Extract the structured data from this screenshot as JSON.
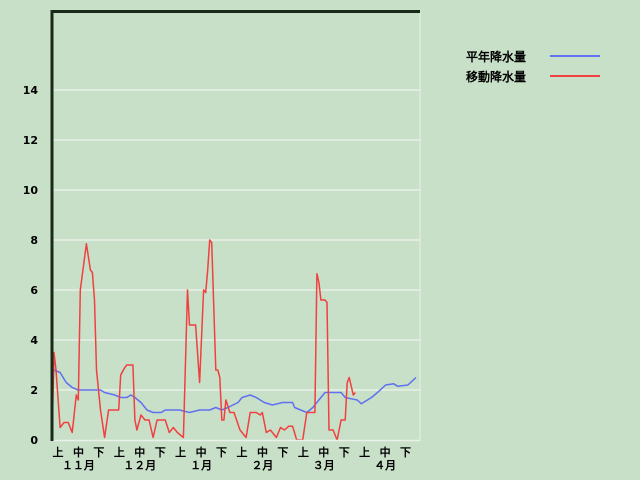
{
  "chart_data": {
    "type": "line",
    "title": "",
    "xlabel": "",
    "ylabel": "",
    "ylim": [
      0,
      14
    ],
    "yticks": [
      "0",
      "2",
      "4",
      "6",
      "8",
      "10",
      "12",
      "14"
    ],
    "grid": true,
    "legend_position": "right",
    "x_period_labels": [
      "上",
      "中",
      "下"
    ],
    "x_month_labels": [
      "１１月",
      "１２月",
      "１月",
      "２月",
      "３月",
      "４月"
    ],
    "colors": {
      "background": "#c8e0c8",
      "grid": "#e8f0e8",
      "axis": "#1a2a1a"
    },
    "series": [
      {
        "name": "平年降水量",
        "color": "#6070f0",
        "points": [
          [
            "11/02",
            2.8
          ],
          [
            "11/05",
            2.7
          ],
          [
            "11/08",
            2.3
          ],
          [
            "11/11",
            2.1
          ],
          [
            "11/14",
            2.0
          ],
          [
            "11/25",
            2.0
          ],
          [
            "11/27",
            1.9
          ],
          [
            "12/02",
            1.8
          ],
          [
            "12/05",
            1.7
          ],
          [
            "12/08",
            1.7
          ],
          [
            "12/10",
            1.8
          ],
          [
            "12/12",
            1.7
          ],
          [
            "12/15",
            1.5
          ],
          [
            "12/18",
            1.2
          ],
          [
            "12/21",
            1.1
          ],
          [
            "12/25",
            1.1
          ],
          [
            "12/27",
            1.2
          ],
          [
            "01/03",
            1.2
          ],
          [
            "01/08",
            1.1
          ],
          [
            "01/13",
            1.2
          ],
          [
            "01/18",
            1.2
          ],
          [
            "01/21",
            1.3
          ],
          [
            "01/24",
            1.2
          ],
          [
            "01/27",
            1.3
          ],
          [
            "02/01",
            1.5
          ],
          [
            "02/03",
            1.7
          ],
          [
            "02/07",
            1.8
          ],
          [
            "02/10",
            1.7
          ],
          [
            "02/14",
            1.5
          ],
          [
            "02/18",
            1.4
          ],
          [
            "02/23",
            1.5
          ],
          [
            "02/28",
            1.5
          ],
          [
            "03/01",
            1.3
          ],
          [
            "03/04",
            1.2
          ],
          [
            "03/07",
            1.1
          ],
          [
            "03/10",
            1.3
          ],
          [
            "03/14",
            1.7
          ],
          [
            "03/16",
            1.9
          ],
          [
            "03/24",
            1.9
          ],
          [
            "03/26",
            1.7
          ],
          [
            "03/29",
            1.65
          ],
          [
            "04/01",
            1.6
          ],
          [
            "04/03",
            1.45
          ],
          [
            "04/06",
            1.6
          ],
          [
            "04/08",
            1.7
          ],
          [
            "04/11",
            1.9
          ],
          [
            "04/15",
            2.2
          ],
          [
            "04/19",
            2.25
          ],
          [
            "04/21",
            2.15
          ],
          [
            "04/26",
            2.2
          ],
          [
            "04/30",
            2.5
          ]
        ]
      },
      {
        "name": "移動降水量",
        "color": "#f04040",
        "points": [
          [
            "11/01",
            0
          ],
          [
            "11/02",
            3.5
          ],
          [
            "11/03",
            2.8
          ],
          [
            "11/05",
            0.5
          ],
          [
            "11/07",
            0.7
          ],
          [
            "11/09",
            0.7
          ],
          [
            "11/11",
            0.3
          ],
          [
            "11/13",
            1.8
          ],
          [
            "11/14",
            1.6
          ],
          [
            "11/15",
            6.0
          ],
          [
            "11/18",
            7.85
          ],
          [
            "11/20",
            6.8
          ],
          [
            "11/21",
            6.7
          ],
          [
            "11/22",
            5.6
          ],
          [
            "11/23",
            2.8
          ],
          [
            "11/25",
            1.2
          ],
          [
            "11/27",
            0.1
          ],
          [
            "11/29",
            1.2
          ],
          [
            "12/04",
            1.2
          ],
          [
            "12/05",
            2.6
          ],
          [
            "12/07",
            2.9
          ],
          [
            "12/08",
            3.0
          ],
          [
            "12/11",
            3.0
          ],
          [
            "12/12",
            0.8
          ],
          [
            "12/13",
            0.4
          ],
          [
            "12/15",
            1.0
          ],
          [
            "12/17",
            0.8
          ],
          [
            "12/19",
            0.8
          ],
          [
            "12/21",
            0.1
          ],
          [
            "12/23",
            0.8
          ],
          [
            "12/27",
            0.8
          ],
          [
            "12/29",
            0.3
          ],
          [
            "12/31",
            0.5
          ],
          [
            "01/02",
            0.3
          ],
          [
            "01/05",
            0.1
          ],
          [
            "01/07",
            6.0
          ],
          [
            "01/08",
            4.6
          ],
          [
            "01/11",
            4.6
          ],
          [
            "01/13",
            2.3
          ],
          [
            "01/15",
            6.0
          ],
          [
            "01/16",
            5.9
          ],
          [
            "01/17",
            6.8
          ],
          [
            "01/18",
            8.0
          ],
          [
            "01/19",
            7.9
          ],
          [
            "01/21",
            2.8
          ],
          [
            "01/22",
            2.8
          ],
          [
            "01/23",
            2.5
          ],
          [
            "01/24",
            0.8
          ],
          [
            "01/25",
            0.8
          ],
          [
            "01/26",
            1.6
          ],
          [
            "01/28",
            1.1
          ],
          [
            "01/30",
            1.1
          ],
          [
            "02/02",
            0.4
          ],
          [
            "02/05",
            0.1
          ],
          [
            "02/07",
            1.1
          ],
          [
            "02/10",
            1.1
          ],
          [
            "02/12",
            1.0
          ],
          [
            "02/13",
            1.1
          ],
          [
            "02/15",
            0.3
          ],
          [
            "02/17",
            0.4
          ],
          [
            "02/20",
            0.1
          ],
          [
            "02/22",
            0.5
          ],
          [
            "02/24",
            0.4
          ],
          [
            "02/26",
            0.55
          ],
          [
            "02/28",
            0.55
          ],
          [
            "03/02",
            0
          ],
          [
            "03/05",
            0
          ],
          [
            "03/07",
            1.1
          ],
          [
            "03/11",
            1.1
          ],
          [
            "03/12",
            6.65
          ],
          [
            "03/13",
            6.3
          ],
          [
            "03/14",
            5.6
          ],
          [
            "03/16",
            5.6
          ],
          [
            "03/17",
            5.5
          ],
          [
            "03/18",
            0.4
          ],
          [
            "03/20",
            0.4
          ],
          [
            "03/22",
            0
          ],
          [
            "03/24",
            0.8
          ],
          [
            "03/26",
            0.8
          ],
          [
            "03/27",
            2.3
          ],
          [
            "03/28",
            2.5
          ],
          [
            "03/30",
            1.8
          ],
          [
            "03/31",
            1.9
          ]
        ]
      }
    ]
  }
}
